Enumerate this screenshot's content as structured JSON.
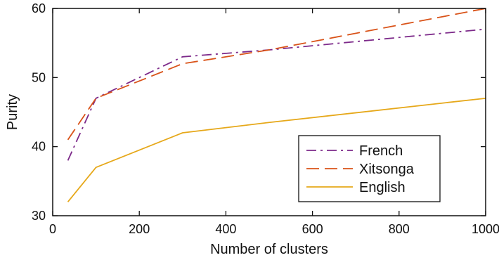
{
  "chart_data": {
    "type": "line",
    "title": "",
    "xlabel": "Number of clusters",
    "ylabel": "Purity",
    "xlim": [
      0,
      1000
    ],
    "ylim": [
      30,
      60
    ],
    "xticks": [
      0,
      200,
      400,
      600,
      800,
      1000
    ],
    "yticks": [
      30,
      40,
      50,
      60
    ],
    "grid": false,
    "legend_position": "bottom-right",
    "series": [
      {
        "name": "French",
        "style": "dash-dot",
        "color": "#7d2a8a",
        "x": [
          35,
          100,
          300,
          500,
          1000
        ],
        "y": [
          38,
          47,
          53,
          54,
          57
        ]
      },
      {
        "name": "Xitsonga",
        "style": "dashed",
        "color": "#d95319",
        "x": [
          35,
          100,
          300,
          500,
          1000
        ],
        "y": [
          41,
          47,
          52,
          54,
          60
        ]
      },
      {
        "name": "English",
        "style": "solid",
        "color": "#e6a81a",
        "x": [
          35,
          100,
          300,
          500,
          1000
        ],
        "y": [
          32,
          37,
          42,
          43.5,
          47
        ]
      }
    ]
  }
}
